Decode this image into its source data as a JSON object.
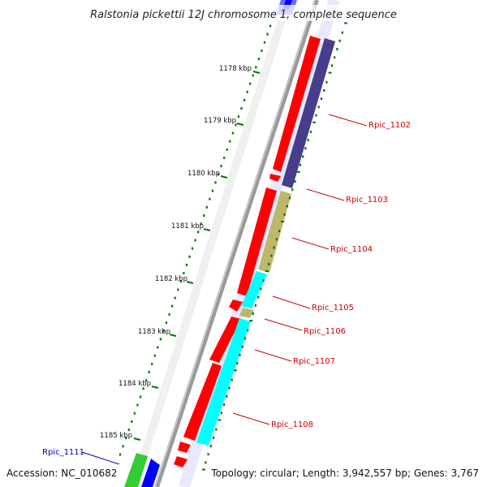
{
  "title": "Ralstonia pickettii 12J chromosome 1, complete sequence",
  "accession": "Accession: NC_010682",
  "topology": "Topology: circular; Length: 3,942,557 bp; Genes: 3,767",
  "colors": {
    "backbone": "#8c8c8c",
    "forward_gene": "#ff0000",
    "reverse_gene_blue": "#0000ff",
    "reverse_gene_green": "#33cc33",
    "gene_slate": "#483d8b",
    "gene_khaki": "#bdb76b",
    "gene_cyan": "#00ffff",
    "tick": "#007700",
    "label_red": "#cc0000",
    "label_blue": "#0000cc"
  },
  "ticks": [
    {
      "label": "1178 kbp"
    },
    {
      "label": "1179 kbp"
    },
    {
      "label": "1180 kbp"
    },
    {
      "label": "1181 kbp"
    },
    {
      "label": "1182 kbp"
    },
    {
      "label": "1183 kbp"
    },
    {
      "label": "1184 kbp"
    },
    {
      "label": "1185 kbp"
    }
  ],
  "gene_labels": [
    {
      "name": "Rpic_1102",
      "color": "#cc0000"
    },
    {
      "name": "Rpic_1103",
      "color": "#cc0000"
    },
    {
      "name": "Rpic_1104",
      "color": "#cc0000"
    },
    {
      "name": "Rpic_1105",
      "color": "#cc0000"
    },
    {
      "name": "Rpic_1106",
      "color": "#cc0000"
    },
    {
      "name": "Rpic_1107",
      "color": "#cc0000"
    },
    {
      "name": "Rpic_1108",
      "color": "#cc0000"
    },
    {
      "name": "Rpic_1111",
      "color": "#0000cc"
    }
  ]
}
